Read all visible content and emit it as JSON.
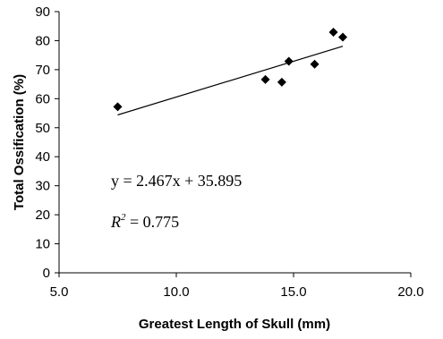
{
  "chart_data": {
    "type": "scatter",
    "xlabel": "Greatest Length of Skull (mm)",
    "ylabel": "Total Ossification (%)",
    "xlim": [
      5.0,
      20.0
    ],
    "ylim": [
      0,
      90
    ],
    "x_ticks": [
      5.0,
      10.0,
      15.0,
      20.0
    ],
    "x_tick_labels": [
      "5.0",
      "10.0",
      "15.0",
      "20.0"
    ],
    "y_ticks": [
      0,
      10,
      20,
      30,
      40,
      50,
      60,
      70,
      80,
      90
    ],
    "y_tick_labels": [
      "0",
      "10",
      "20",
      "30",
      "40",
      "50",
      "60",
      "70",
      "80",
      "90"
    ],
    "grid": false,
    "legend": "none",
    "marker": "diamond",
    "colors": {
      "marker": "#000000",
      "line": "#000000",
      "axis": "#000000"
    },
    "points": [
      {
        "x": 7.5,
        "y": 57.2
      },
      {
        "x": 13.8,
        "y": 66.6
      },
      {
        "x": 14.5,
        "y": 65.7
      },
      {
        "x": 14.8,
        "y": 72.9
      },
      {
        "x": 15.9,
        "y": 71.9
      },
      {
        "x": 16.7,
        "y": 82.9
      },
      {
        "x": 17.1,
        "y": 81.2
      }
    ],
    "trendline": {
      "type": "linear",
      "slope": 2.467,
      "intercept": 35.895,
      "x_range": [
        7.5,
        17.1
      ]
    },
    "annotations": {
      "equation": "y = 2.467x + 35.895",
      "r2_symbol": "R",
      "r2_exponent": "2",
      "r2_value": " = 0.775"
    }
  }
}
